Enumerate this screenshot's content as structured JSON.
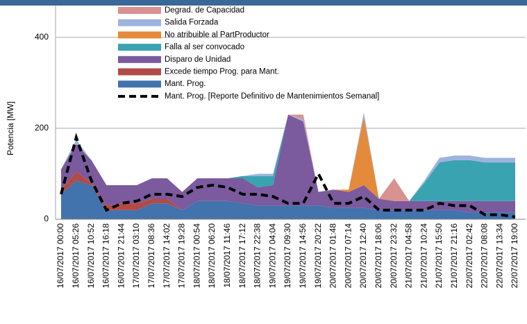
{
  "chart_data": {
    "type": "stacked-area",
    "y_label": "Potencia [MW]",
    "ylim": [
      0,
      470
    ],
    "yticks": [
      0,
      200,
      400
    ],
    "grid": true,
    "legend": "top",
    "categories": [
      "16/07/2017 00:00",
      "16/07/2017 05:26",
      "16/07/2017 10:52",
      "16/07/2017 16:18",
      "16/07/2017 21:44",
      "17/07/2017 03:10",
      "17/07/2017 08:36",
      "17/07/2017 14:02",
      "17/07/2017 19:28",
      "18/07/2017 00:54",
      "18/07/2017 06:20",
      "18/07/2017 11:46",
      "18/07/2017 17:12",
      "18/07/2017 22:38",
      "19/07/2017 04:04",
      "19/07/2017 09:30",
      "19/07/2017 14:56",
      "19/07/2017 20:22",
      "20/07/2017 01:48",
      "20/07/2017 07:14",
      "20/07/2017 12:40",
      "20/07/2017 18:06",
      "20/07/2017 23:32",
      "21/07/2017 04:58",
      "21/07/2017 10:24",
      "21/07/2017 15:50",
      "21/07/2017 21:16",
      "22/07/2017 02:42",
      "22/07/2017 08:08",
      "22/07/2017 13:34",
      "22/07/2017 19:00"
    ],
    "series": [
      {
        "name": "Mant. Prog.",
        "color": "#4273ad",
        "values": [
          55,
          85,
          75,
          20,
          20,
          20,
          35,
          35,
          20,
          40,
          40,
          40,
          35,
          30,
          30,
          30,
          30,
          30,
          25,
          25,
          25,
          20,
          20,
          20,
          20,
          20,
          20,
          15,
          15,
          15,
          15
        ]
      },
      {
        "name": "Excede tiempo Prog. para Mant.",
        "color": "#b24a47",
        "values": [
          10,
          20,
          5,
          10,
          15,
          15,
          10,
          10,
          0,
          0,
          0,
          0,
          0,
          0,
          0,
          0,
          0,
          0,
          0,
          0,
          0,
          0,
          0,
          0,
          0,
          0,
          0,
          0,
          0,
          0,
          0
        ]
      },
      {
        "name": "Disparo de Unidad",
        "color": "#7b5a9e",
        "values": [
          45,
          60,
          50,
          45,
          40,
          40,
          45,
          45,
          40,
          50,
          50,
          50,
          55,
          40,
          45,
          200,
          185,
          30,
          40,
          35,
          50,
          25,
          20,
          20,
          20,
          20,
          20,
          25,
          25,
          25,
          25
        ]
      },
      {
        "name": "Falla al ser convocado",
        "color": "#3aa3b1",
        "values": [
          0,
          0,
          0,
          0,
          0,
          0,
          0,
          0,
          0,
          0,
          0,
          0,
          5,
          25,
          20,
          0,
          0,
          0,
          0,
          0,
          0,
          0,
          0,
          0,
          40,
          85,
          90,
          90,
          85,
          85,
          85
        ]
      },
      {
        "name": "No atribuible al PartProductor",
        "color": "#e58a3a",
        "values": [
          0,
          0,
          0,
          0,
          0,
          0,
          0,
          0,
          0,
          0,
          0,
          0,
          0,
          0,
          0,
          0,
          0,
          0,
          0,
          5,
          150,
          0,
          0,
          0,
          0,
          0,
          0,
          0,
          0,
          0,
          0
        ]
      },
      {
        "name": "Salida Forzada",
        "color": "#9db3dc",
        "values": [
          0,
          10,
          0,
          0,
          0,
          0,
          0,
          0,
          0,
          0,
          0,
          0,
          0,
          5,
          5,
          0,
          5,
          0,
          0,
          0,
          10,
          0,
          0,
          0,
          5,
          10,
          10,
          10,
          10,
          10,
          10
        ]
      },
      {
        "name": "Degrad. de Capacidad",
        "color": "#d9928f",
        "values": [
          0,
          0,
          0,
          0,
          0,
          0,
          0,
          0,
          0,
          0,
          0,
          0,
          0,
          0,
          0,
          0,
          10,
          0,
          0,
          0,
          0,
          0,
          50,
          0,
          0,
          0,
          0,
          0,
          0,
          0,
          0
        ]
      }
    ],
    "line": {
      "name": "Mant. Prog. [Reporte Definitivo  de Mantenimientos Semanal]",
      "color": "#000000",
      "values": [
        55,
        180,
        85,
        20,
        35,
        40,
        55,
        55,
        50,
        70,
        75,
        70,
        55,
        55,
        50,
        35,
        35,
        100,
        35,
        35,
        50,
        20,
        20,
        20,
        20,
        35,
        30,
        30,
        10,
        10,
        5
      ]
    }
  }
}
